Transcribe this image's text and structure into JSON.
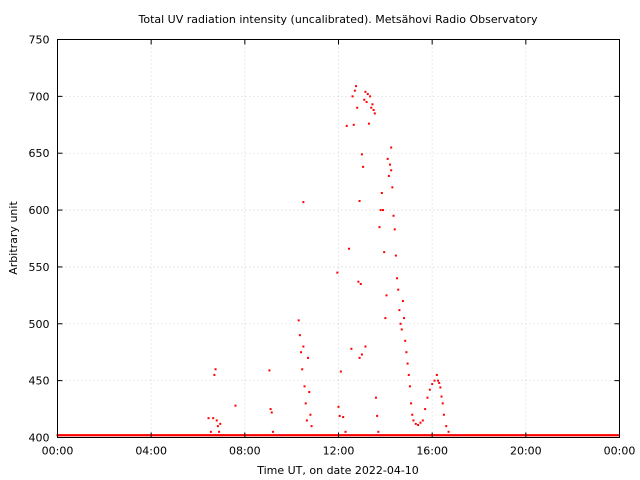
{
  "chart_data": {
    "type": "scatter",
    "title": "Total UV radiation intensity (uncalibrated). Metsähovi Radio Observatory",
    "xlabel": "Time UT, on date 2022-04-10",
    "ylabel": "Arbitrary unit",
    "xlim": [
      0,
      24
    ],
    "ylim": [
      400,
      750
    ],
    "x_ticks": [
      {
        "value": 0,
        "label": "00:00"
      },
      {
        "value": 4,
        "label": "04:00"
      },
      {
        "value": 8,
        "label": "08:00"
      },
      {
        "value": 12,
        "label": "12:00"
      },
      {
        "value": 16,
        "label": "16:00"
      },
      {
        "value": 20,
        "label": "20:00"
      },
      {
        "value": 24,
        "label": "00:00"
      }
    ],
    "y_ticks": [
      {
        "value": 400,
        "label": "400"
      },
      {
        "value": 450,
        "label": "450"
      },
      {
        "value": 500,
        "label": "500"
      },
      {
        "value": 550,
        "label": "550"
      },
      {
        "value": 600,
        "label": "600"
      },
      {
        "value": 650,
        "label": "650"
      },
      {
        "value": 700,
        "label": "700"
      },
      {
        "value": 750,
        "label": "750"
      }
    ],
    "grid": true,
    "marker_color": "#ff0000",
    "baseline": {
      "x_start": 0,
      "x_end": 24,
      "value": 402
    },
    "series": [
      {
        "points": [
          [
            6.45,
            417
          ],
          [
            6.55,
            405
          ],
          [
            6.65,
            417
          ],
          [
            6.7,
            455
          ],
          [
            6.75,
            460
          ],
          [
            6.8,
            415
          ],
          [
            6.85,
            410
          ],
          [
            6.9,
            405
          ],
          [
            6.95,
            412
          ],
          [
            7.6,
            428
          ],
          [
            9.05,
            459
          ],
          [
            9.1,
            425
          ],
          [
            9.15,
            422
          ],
          [
            9.2,
            405
          ],
          [
            10.3,
            503
          ],
          [
            10.35,
            490
          ],
          [
            10.4,
            475
          ],
          [
            10.45,
            460
          ],
          [
            10.5,
            480
          ],
          [
            10.55,
            445
          ],
          [
            10.6,
            430
          ],
          [
            10.65,
            415
          ],
          [
            10.7,
            470
          ],
          [
            10.75,
            440
          ],
          [
            10.8,
            420
          ],
          [
            10.85,
            410
          ],
          [
            10.5,
            607
          ],
          [
            11.95,
            545
          ],
          [
            12.0,
            427
          ],
          [
            12.05,
            419
          ],
          [
            12.1,
            458
          ],
          [
            12.2,
            418
          ],
          [
            12.3,
            405
          ],
          [
            12.35,
            674
          ],
          [
            12.45,
            566
          ],
          [
            12.6,
            700
          ],
          [
            12.65,
            675
          ],
          [
            12.7,
            705
          ],
          [
            12.75,
            709
          ],
          [
            12.8,
            690
          ],
          [
            12.85,
            537
          ],
          [
            12.9,
            608
          ],
          [
            12.95,
            535
          ],
          [
            13.0,
            649
          ],
          [
            13.05,
            638
          ],
          [
            13.1,
            697
          ],
          [
            13.15,
            704
          ],
          [
            13.2,
            695
          ],
          [
            13.25,
            702
          ],
          [
            13.3,
            676
          ],
          [
            13.35,
            700
          ],
          [
            13.4,
            690
          ],
          [
            13.45,
            693
          ],
          [
            13.5,
            688
          ],
          [
            13.55,
            685
          ],
          [
            13.6,
            435
          ],
          [
            13.65,
            419
          ],
          [
            13.7,
            405
          ],
          [
            13.75,
            585
          ],
          [
            13.8,
            600
          ],
          [
            13.85,
            615
          ],
          [
            13.9,
            600
          ],
          [
            13.95,
            563
          ],
          [
            14.0,
            505
          ],
          [
            14.05,
            525
          ],
          [
            14.1,
            645
          ],
          [
            14.15,
            630
          ],
          [
            14.2,
            640
          ],
          [
            14.25,
            635
          ],
          [
            14.3,
            620
          ],
          [
            14.35,
            595
          ],
          [
            14.4,
            583
          ],
          [
            14.45,
            560
          ],
          [
            14.5,
            540
          ],
          [
            14.55,
            530
          ],
          [
            14.6,
            512
          ],
          [
            14.65,
            500
          ],
          [
            14.7,
            495
          ],
          [
            14.75,
            520
          ],
          [
            14.8,
            505
          ],
          [
            14.85,
            485
          ],
          [
            14.9,
            475
          ],
          [
            14.95,
            465
          ],
          [
            15.0,
            455
          ],
          [
            15.05,
            445
          ],
          [
            15.1,
            430
          ],
          [
            15.15,
            420
          ],
          [
            15.2,
            415
          ],
          [
            15.3,
            412
          ],
          [
            15.4,
            411
          ],
          [
            15.5,
            413
          ],
          [
            15.6,
            415
          ],
          [
            15.7,
            425
          ],
          [
            15.8,
            435
          ],
          [
            15.9,
            442
          ],
          [
            16.0,
            447
          ],
          [
            16.1,
            450
          ],
          [
            16.2,
            455
          ],
          [
            16.25,
            450
          ],
          [
            16.3,
            448
          ],
          [
            16.35,
            444
          ],
          [
            16.4,
            436
          ],
          [
            16.45,
            430
          ],
          [
            16.5,
            420
          ],
          [
            16.6,
            410
          ],
          [
            16.7,
            405
          ],
          [
            12.55,
            478
          ],
          [
            12.9,
            470
          ],
          [
            13.15,
            480
          ],
          [
            13.0,
            473
          ],
          [
            14.25,
            655
          ]
        ]
      }
    ]
  }
}
